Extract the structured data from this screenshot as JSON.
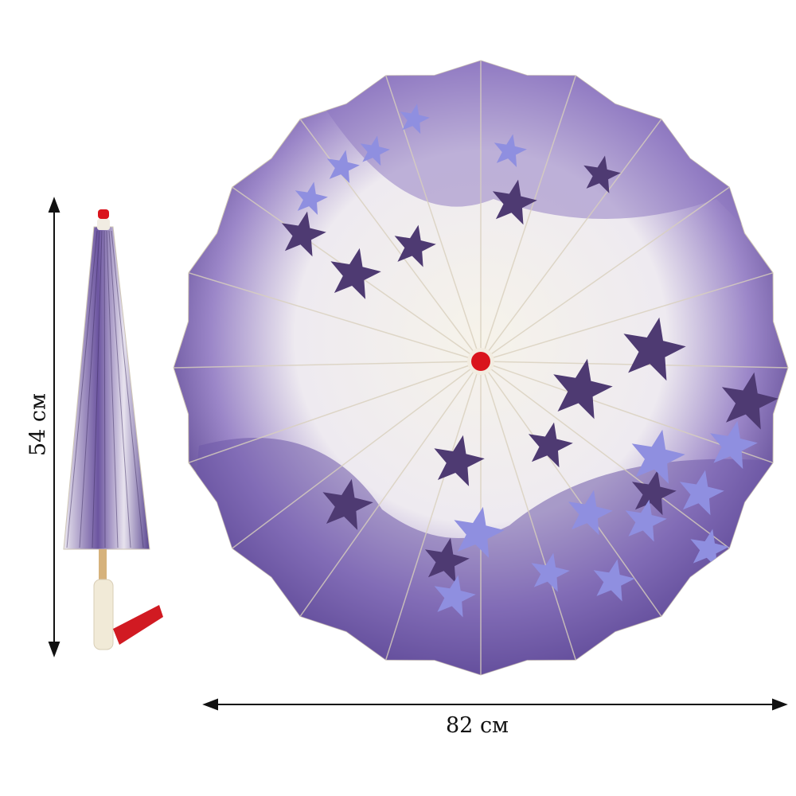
{
  "dimensions": {
    "height_label": "54 см",
    "width_label": "82 см"
  },
  "colors": {
    "canopy_light": "#f4f1e6",
    "purple_dark": "#4e3a72",
    "purple_mid": "#7a62b4",
    "flower_blue": "#8f8fe0",
    "tip_red": "#d9141c",
    "leaf_green": "#7aa03a"
  }
}
